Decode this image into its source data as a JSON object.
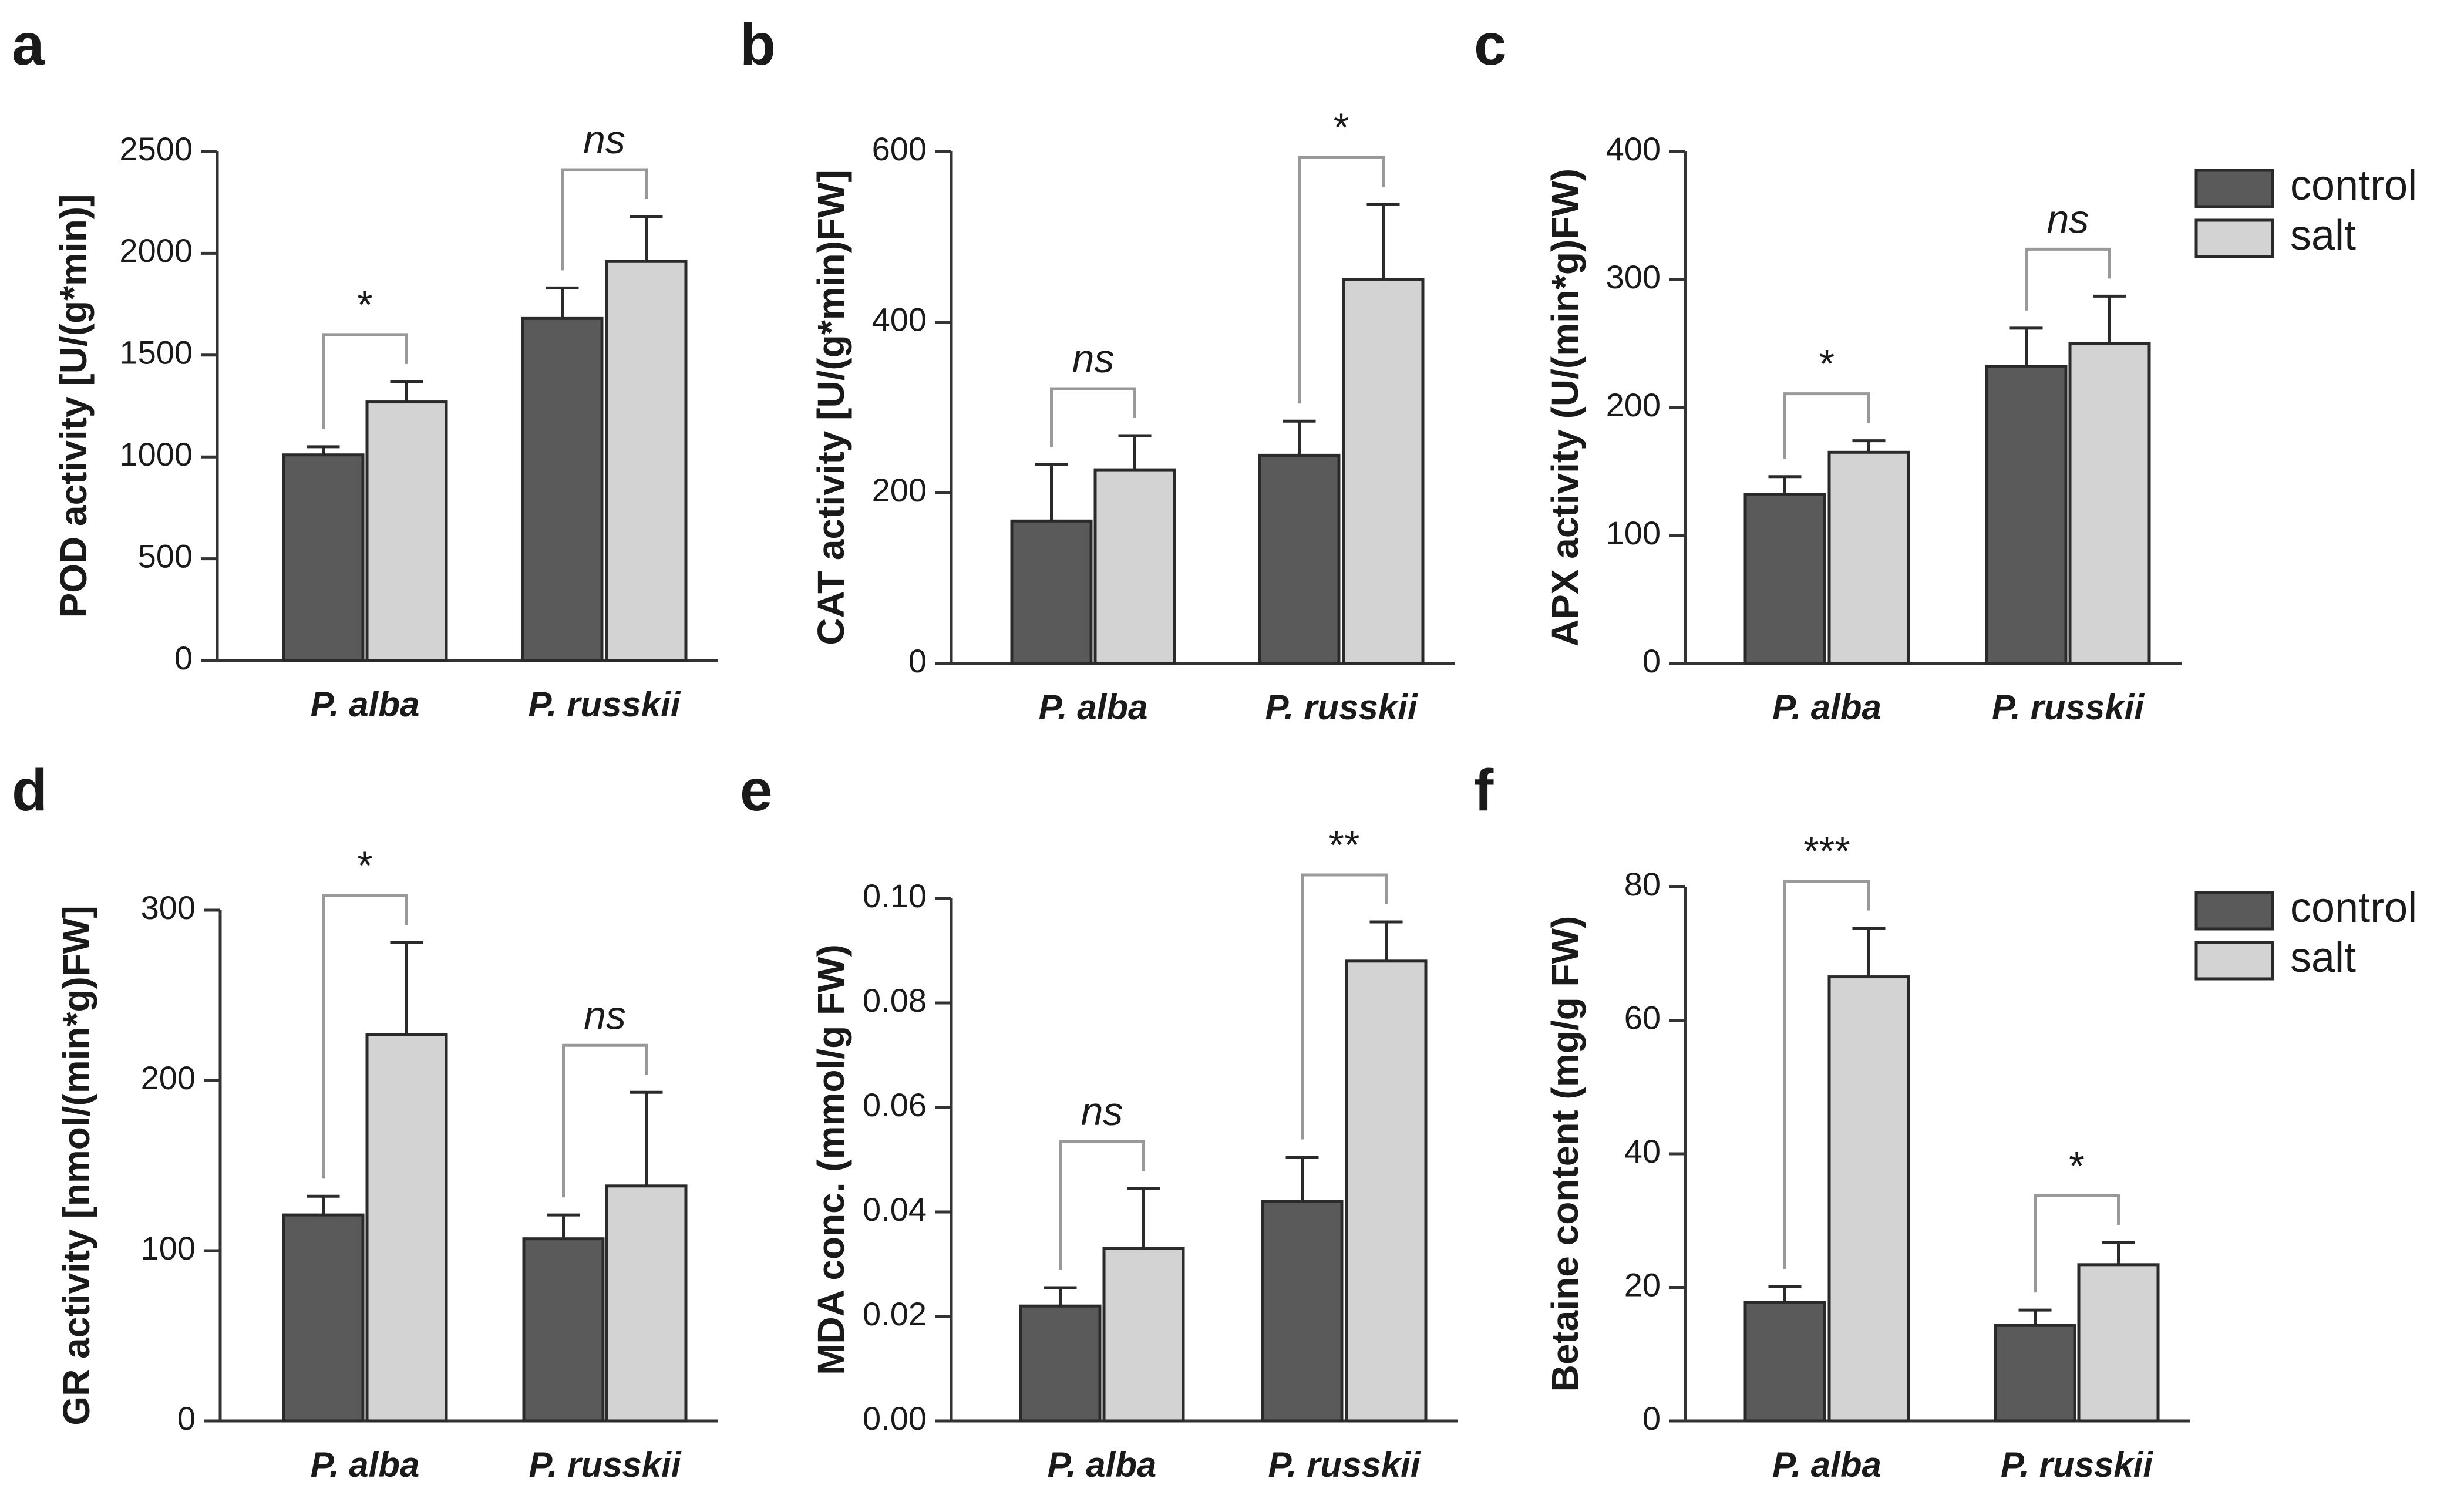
{
  "legend": {
    "control_label": "control",
    "salt_label": "salt"
  },
  "colors": {
    "control": "#5a5a5a",
    "salt": "#d3d3d3",
    "bracket": "#999999",
    "axis": "#333333"
  },
  "chart_data": [
    {
      "panel": "a",
      "type": "bar",
      "ylabel": "POD activity [U/(g*min)]",
      "categories": [
        "P. alba",
        "P. russkii"
      ],
      "ylim": [
        0,
        2500
      ],
      "yticks": [
        0,
        500,
        1000,
        1500,
        2000,
        2500
      ],
      "series": [
        {
          "name": "control",
          "values": [
            1010,
            1680
          ],
          "errors": [
            40,
            150
          ]
        },
        {
          "name": "salt",
          "values": [
            1270,
            1960
          ],
          "errors": [
            100,
            220
          ]
        }
      ],
      "significance": [
        "*",
        "ns"
      ],
      "legend": false
    },
    {
      "panel": "b",
      "type": "bar",
      "ylabel": "CAT activity [U/(g*min)FW]",
      "categories": [
        "P. alba",
        "P. russkii"
      ],
      "ylim": [
        0,
        600
      ],
      "yticks": [
        0,
        200,
        400,
        600
      ],
      "series": [
        {
          "name": "control",
          "values": [
            167,
            244
          ],
          "errors": [
            66,
            40
          ]
        },
        {
          "name": "salt",
          "values": [
            227,
            450
          ],
          "errors": [
            40,
            88
          ]
        }
      ],
      "significance": [
        "ns",
        "*"
      ],
      "legend": false
    },
    {
      "panel": "c",
      "type": "bar",
      "ylabel": "APX activity (U/(min*g)FW)",
      "categories": [
        "P. alba",
        "P. russkii"
      ],
      "ylim": [
        0,
        400
      ],
      "yticks": [
        0,
        100,
        200,
        300,
        400
      ],
      "series": [
        {
          "name": "control",
          "values": [
            132,
            232
          ],
          "errors": [
            14,
            30
          ]
        },
        {
          "name": "salt",
          "values": [
            165,
            250
          ],
          "errors": [
            9,
            37
          ]
        }
      ],
      "significance": [
        "*",
        "ns"
      ],
      "legend": true
    },
    {
      "panel": "d",
      "type": "bar",
      "ylabel": "GR activity [nmol/(min*g)FW]",
      "categories": [
        "P. alba",
        "P. russkii"
      ],
      "ylim": [
        0,
        300
      ],
      "yticks": [
        0,
        100,
        200,
        300
      ],
      "series": [
        {
          "name": "control",
          "values": [
            121,
            107
          ],
          "errors": [
            11,
            14
          ]
        },
        {
          "name": "salt",
          "values": [
            227,
            138
          ],
          "errors": [
            54,
            55
          ]
        }
      ],
      "significance": [
        "*",
        "ns"
      ],
      "legend": false
    },
    {
      "panel": "e",
      "type": "bar",
      "ylabel": "MDA conc. (mmol/g FW)",
      "categories": [
        "P. alba",
        "P. russkii"
      ],
      "ylim": [
        0,
        0.1
      ],
      "yticks": [
        0,
        0.02,
        0.04,
        0.06,
        0.08,
        0.1
      ],
      "yticklabels": [
        "0.00",
        "0.02",
        "0.04",
        "0.06",
        "0.08",
        "0.10"
      ],
      "series": [
        {
          "name": "control",
          "values": [
            0.022,
            0.042
          ],
          "errors": [
            0.0035,
            0.0085
          ]
        },
        {
          "name": "salt",
          "values": [
            0.033,
            0.088
          ],
          "errors": [
            0.0115,
            0.0075
          ]
        }
      ],
      "significance": [
        "ns",
        "**"
      ],
      "legend": false
    },
    {
      "panel": "f",
      "type": "bar",
      "ylabel": "Betaine content (mg/g FW)",
      "categories": [
        "P. alba",
        "P. russkii"
      ],
      "ylim": [
        0,
        80
      ],
      "yticks": [
        0,
        20,
        40,
        60,
        80
      ],
      "series": [
        {
          "name": "control",
          "values": [
            17.8,
            14.3
          ],
          "errors": [
            2.3,
            2.3
          ]
        },
        {
          "name": "salt",
          "values": [
            66.5,
            23.4
          ],
          "errors": [
            7.3,
            3.3
          ]
        }
      ],
      "significance": [
        "***",
        "*"
      ],
      "legend": true
    }
  ]
}
